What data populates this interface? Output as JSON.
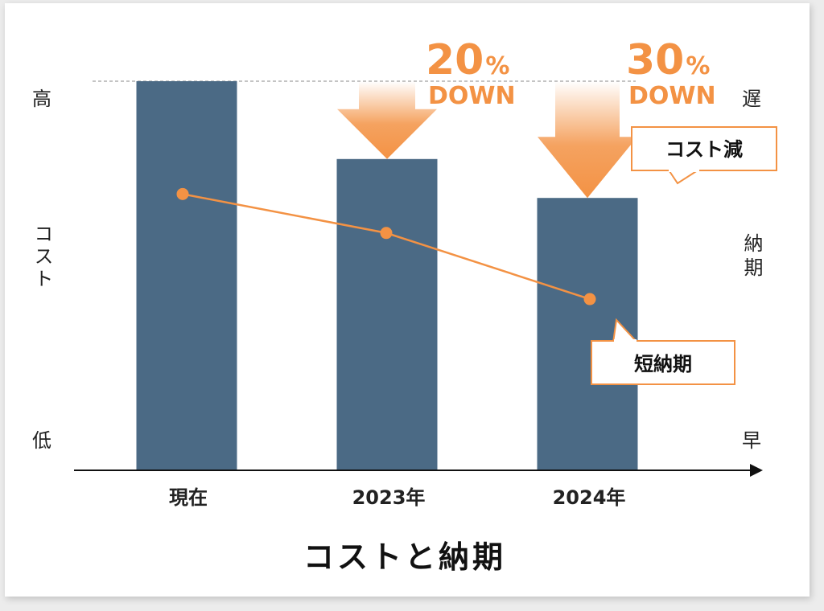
{
  "colors": {
    "bar": "#4b6a85",
    "accent": "#f39244",
    "axis": "#111111"
  },
  "chart_data": {
    "type": "bar",
    "title": "コストと納期",
    "categories": [
      "現在",
      "2023年",
      "2024年"
    ],
    "series": [
      {
        "name": "コスト",
        "values": [
          100,
          80,
          70
        ]
      },
      {
        "name": "納期",
        "values": [
          71,
          61,
          44
        ]
      }
    ],
    "ylim": [
      0,
      100
    ],
    "y_left_label": "コスト",
    "y_left_high": "高",
    "y_left_low": "低",
    "y_right_label": "納期",
    "y_right_high": "遅",
    "y_right_low": "早",
    "annotations": [
      {
        "category": "2023年",
        "number": "20",
        "unit": "%",
        "text": "DOWN"
      },
      {
        "category": "2024年",
        "number": "30",
        "unit": "%",
        "text": "DOWN"
      }
    ],
    "callouts": {
      "cost": "コスト減",
      "leadtime": "短納期"
    },
    "grid": false,
    "reference_line": "dashed line at maximum cost"
  }
}
